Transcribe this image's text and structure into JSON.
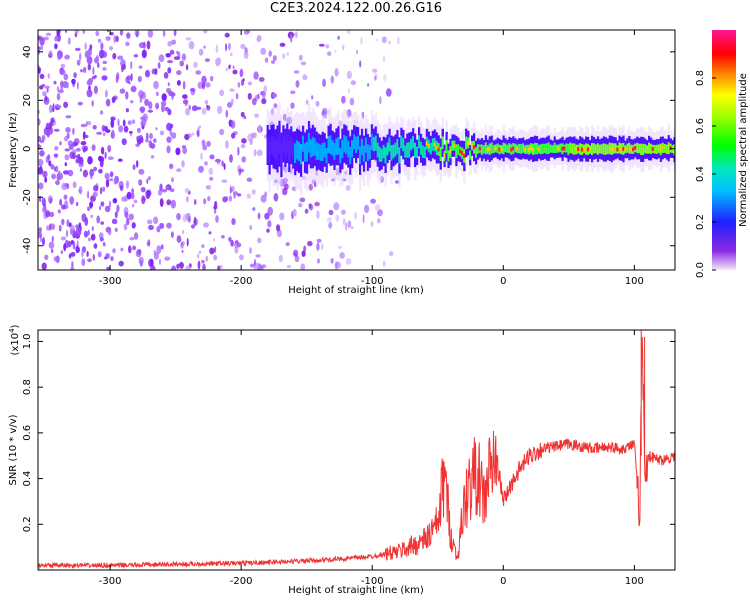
{
  "title": "C2E3.2024.122.00.26.G16",
  "colors": {
    "snr_line": "#f03232",
    "spectrum_noise": "#8a2be2",
    "frame": "#000000"
  },
  "chart_data": [
    {
      "type": "heatmap",
      "title": "C2E3.2024.122.00.26.G16",
      "xlabel": "Height of straight line (km)",
      "ylabel": "Frequency (Hz)",
      "xlim": [
        -355,
        131
      ],
      "ylim": [
        -50,
        49
      ],
      "x_ticks": [
        -300,
        -200,
        -100,
        0,
        100
      ],
      "y_ticks": [
        -40,
        -20,
        0,
        20,
        40
      ],
      "colorbar": {
        "label": "Normalized spectral amplitude",
        "range": [
          0.0,
          1.0
        ],
        "ticks": [
          0.0,
          0.2,
          0.4,
          0.6,
          0.8
        ],
        "colormap": "rainbow (purple-blue-cyan-green-yellow-red-magenta)"
      },
      "signal_band": {
        "description": "narrow band centered near 0 Hz",
        "center_hz": 0,
        "x_start_km": -180,
        "amplitude_by_height": [
          {
            "x": -180,
            "amplitude": 0.1
          },
          {
            "x": -150,
            "amplitude": 0.25
          },
          {
            "x": -100,
            "amplitude": 0.3
          },
          {
            "x": -60,
            "amplitude": 0.4
          },
          {
            "x": -30,
            "amplitude": 0.55
          },
          {
            "x": 0,
            "amplitude": 0.5
          },
          {
            "x": 50,
            "amplitude": 0.55
          },
          {
            "x": 100,
            "amplitude": 0.6
          },
          {
            "x": 130,
            "amplitude": 0.6
          }
        ],
        "noise_extent_km": [
          -355,
          -80
        ]
      }
    },
    {
      "type": "line",
      "title": "",
      "xlabel": "Height of straight line (km)",
      "ylabel": "SNR (10 * v/v)",
      "y_multiplier_label": "(x10",
      "y_multiplier_exp": "4",
      "y_multiplier_close": ")",
      "xlim": [
        -355,
        131
      ],
      "ylim": [
        0,
        1.05
      ],
      "x_ticks": [
        -300,
        -200,
        -100,
        0,
        100
      ],
      "y_ticks": [
        0.2,
        0.4,
        0.6,
        0.8,
        1.0
      ],
      "series": [
        {
          "x": [
            -355,
            -300,
            -250,
            -200,
            -150,
            -120,
            -100,
            -80,
            -60,
            -50,
            -45,
            -40,
            -35,
            -30,
            -25,
            -20,
            -15,
            -10,
            -5,
            0,
            10,
            20,
            30,
            40,
            50,
            60,
            70,
            80,
            90,
            100,
            104,
            106,
            108,
            110,
            115,
            120,
            131
          ],
          "y": [
            0.02,
            0.02,
            0.025,
            0.03,
            0.04,
            0.05,
            0.06,
            0.08,
            0.13,
            0.2,
            0.42,
            0.15,
            0.05,
            0.28,
            0.38,
            0.43,
            0.3,
            0.44,
            0.48,
            0.3,
            0.42,
            0.5,
            0.53,
            0.54,
            0.55,
            0.54,
            0.53,
            0.54,
            0.53,
            0.55,
            0.23,
            1.05,
            0.4,
            0.5,
            0.49,
            0.48,
            0.5
          ]
        }
      ]
    }
  ]
}
